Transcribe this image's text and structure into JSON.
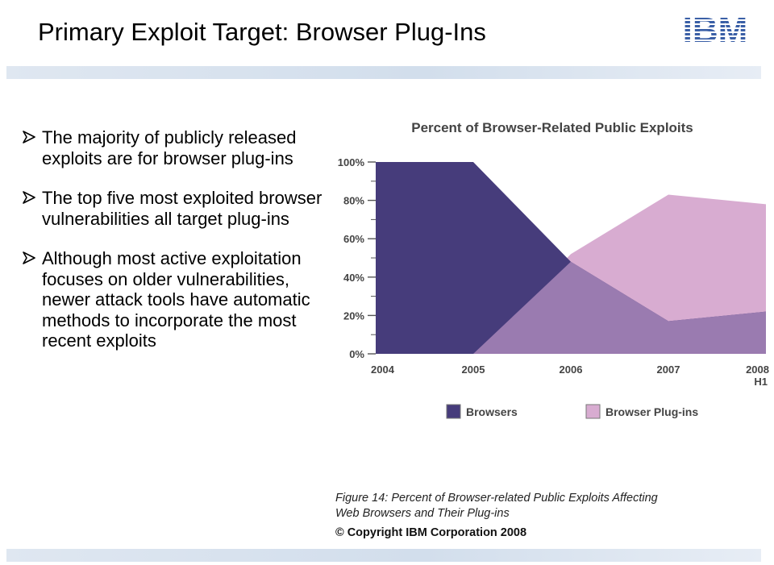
{
  "slide": {
    "title": "Primary Exploit Target: Browser Plug-Ins",
    "logo_text": "IBM",
    "bullets": [
      "The majority of publicly released exploits are for browser plug-ins",
      "The top five most exploited browser vulnerabilities all target plug-ins",
      "Although most active exploitation focuses on older vulnerabilities, newer attack tools have automatic methods to incorporate the most recent exploits"
    ],
    "caption_line1": "Figure 14: Percent of Browser-related Public Exploits Affecting",
    "caption_line2": "Web Browsers and Their Plug-ins",
    "copyright": "© Copyright IBM Corporation 2008"
  },
  "colors": {
    "browsers": "#463c7b",
    "plugins": "#d8acd1",
    "overlap": "#9a7bb0",
    "accent_bar": "#d7e1ee",
    "bullet_arrow": "#000000"
  },
  "chart_data": {
    "type": "area",
    "title": "Percent of Browser-Related Public Exploits",
    "categories": [
      "2004",
      "2005",
      "2006",
      "2007",
      "2008 H1"
    ],
    "tick_labels": [
      "2004",
      "2005",
      "2006",
      "2007",
      "2008"
    ],
    "tick_sublabel": "H1",
    "yticks": [
      "0%",
      "20%",
      "40%",
      "60%",
      "80%",
      "100%"
    ],
    "ylim": [
      0,
      100
    ],
    "series": [
      {
        "name": "Browsers",
        "values": [
          100,
          100,
          48,
          17,
          22
        ]
      },
      {
        "name": "Browser Plug-ins",
        "values": [
          0,
          0,
          52,
          83,
          78
        ]
      }
    ],
    "legend": "bottom"
  }
}
